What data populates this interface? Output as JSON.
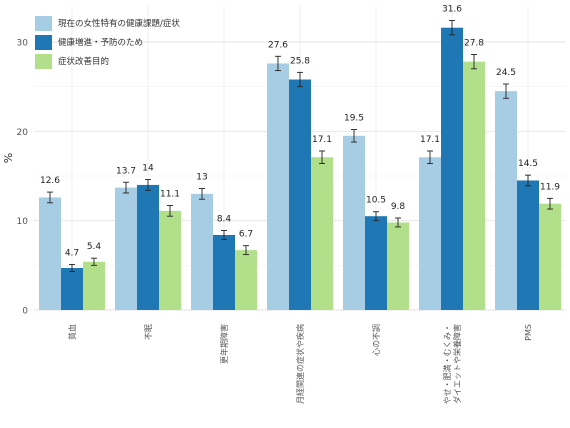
{
  "chart_data": {
    "type": "bar",
    "title": "",
    "xlabel": "",
    "ylabel": "%",
    "ylim": [
      0,
      34
    ],
    "yticks": [
      0,
      10,
      20,
      30
    ],
    "grid": true,
    "legend_position": "top-left",
    "error_bars": true,
    "categories": [
      "貧血",
      "不眠",
      "更年期障害",
      "月経関連の症状や疾病",
      "心の不調",
      "やせ・肥満・むくみ・ダイエットや栄養障害",
      "PMS"
    ],
    "series": [
      {
        "name": "現在の女性特有の健康課題/症状",
        "color": "#a6cde3",
        "values": [
          12.6,
          13.7,
          13,
          27.6,
          19.5,
          17.1,
          24.5
        ]
      },
      {
        "name": "健康増進・予防のため",
        "color": "#1f78b4",
        "values": [
          4.7,
          14,
          8.4,
          25.8,
          10.5,
          31.6,
          14.5
        ]
      },
      {
        "name": "症状改善目的",
        "color": "#b2df8a",
        "values": [
          5.4,
          11.1,
          6.7,
          17.1,
          9.8,
          27.8,
          11.9
        ]
      }
    ],
    "errors": [
      [
        0.6,
        0.6,
        0.6,
        0.8,
        0.7,
        0.7,
        0.8
      ],
      [
        0.4,
        0.6,
        0.5,
        0.8,
        0.5,
        0.8,
        0.6
      ],
      [
        0.4,
        0.6,
        0.5,
        0.7,
        0.5,
        0.8,
        0.6
      ]
    ],
    "value_labels": [
      [
        "12.6",
        "13.7",
        "13",
        "27.6",
        "19.5",
        "17.1",
        "24.5"
      ],
      [
        "4.7",
        "14",
        "8.4",
        "25.8",
        "10.5",
        "31.6",
        "14.5"
      ],
      [
        "5.4",
        "11.1",
        "6.7",
        "17.1",
        "9.8",
        "27.8",
        "11.9"
      ]
    ],
    "category_labels_display": [
      [
        "貧血"
      ],
      [
        "不眠"
      ],
      [
        "更年期障害"
      ],
      [
        "月経関連の症状や疾病"
      ],
      [
        "心の不調"
      ],
      [
        "やせ・肥満・むくみ・",
        "ダイエットや栄養障害"
      ],
      [
        "PMS"
      ]
    ]
  }
}
